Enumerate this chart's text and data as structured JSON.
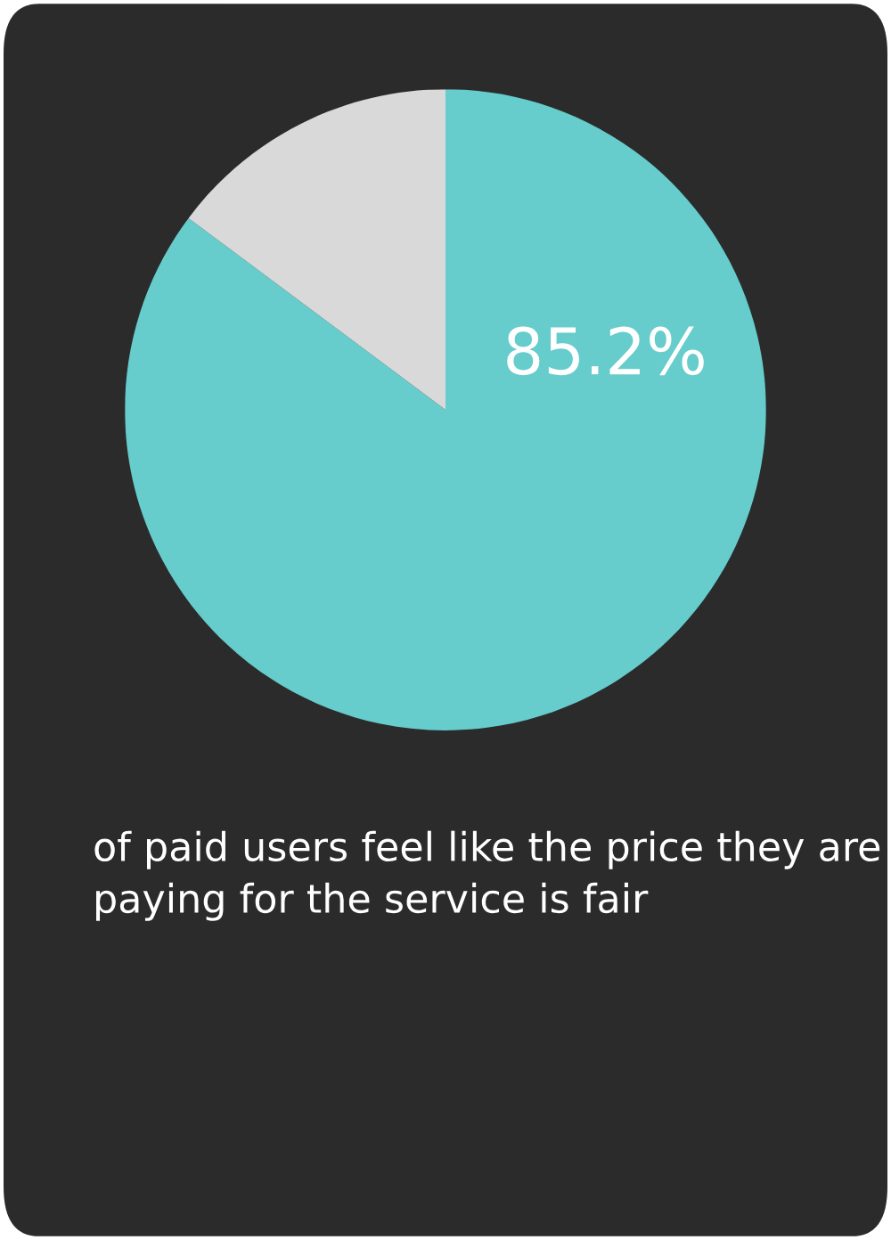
{
  "chart_data": {
    "type": "pie",
    "categories": [
      null,
      null
    ],
    "values": [
      85.2,
      14.8
    ],
    "colors": [
      "#66cccc",
      "#d9d9d9"
    ],
    "value_labels": [
      "85.2%",
      null
    ],
    "annotations": [
      "of paid users feel like the price they are paying for the service is fair"
    ]
  }
}
